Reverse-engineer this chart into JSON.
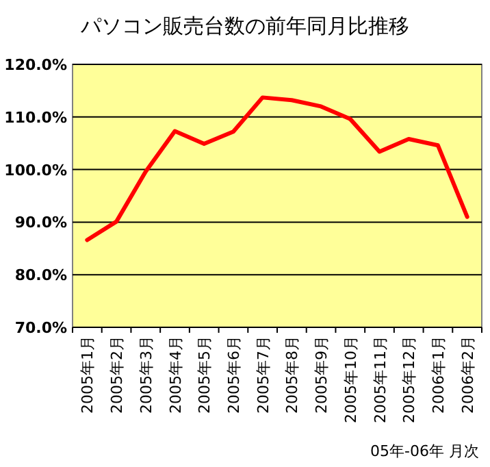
{
  "chart_data": {
    "type": "line",
    "title": "パソコン販売台数の前年同月比推移",
    "categories": [
      "2005年1月",
      "2005年2月",
      "2005年3月",
      "2005年4月",
      "2005年5月",
      "2005年6月",
      "2005年7月",
      "2005年8月",
      "2005年9月",
      "2005年10月",
      "2005年11月",
      "2005年12月",
      "2006年1月",
      "2006年2月"
    ],
    "series": [
      {
        "color": "#ff0000",
        "values": [
          86.6,
          90.1,
          99.6,
          107.3,
          104.9,
          107.2,
          113.7,
          113.2,
          112.0,
          109.6,
          103.4,
          105.8,
          104.6,
          91.0
        ]
      }
    ],
    "ylim": [
      70,
      120
    ],
    "yticks": [
      {
        "value": 70,
        "label": "70.0%"
      },
      {
        "value": 80,
        "label": "80.0%"
      },
      {
        "value": 90,
        "label": "90.0%"
      },
      {
        "value": 100,
        "label": "100.0%"
      },
      {
        "value": 110,
        "label": "110.0%"
      },
      {
        "value": 120,
        "label": "120.0%"
      }
    ],
    "grid": "y",
    "marker": "none",
    "line_style": "solid",
    "annotations": [
      "05年-06年 月次"
    ]
  }
}
